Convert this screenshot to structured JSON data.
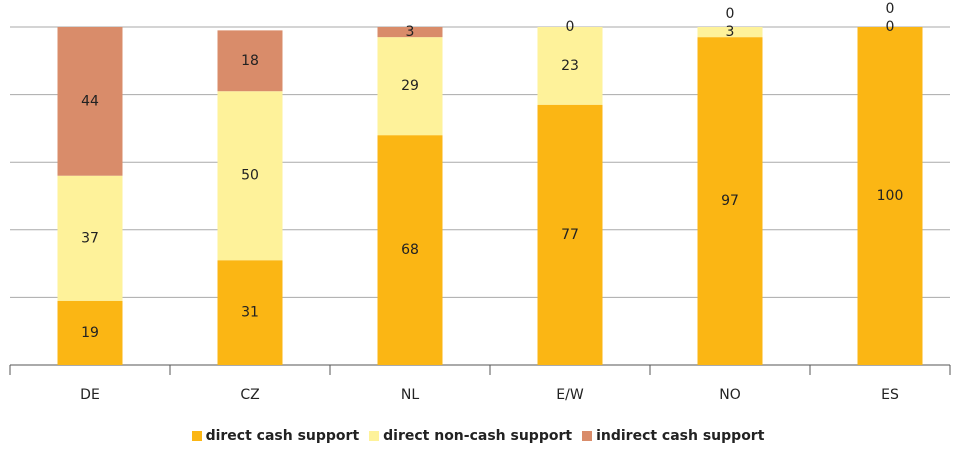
{
  "chart_data": {
    "type": "stacked_bar",
    "categories": [
      "DE",
      "CZ",
      "NL",
      "E/W",
      "NO",
      "ES"
    ],
    "series": [
      {
        "name": "direct cash support",
        "color": "#fbb614",
        "values": [
          19,
          31,
          68,
          77,
          97,
          100
        ]
      },
      {
        "name": "direct non-cash support",
        "color": "#fef29a",
        "values": [
          37,
          50,
          29,
          23,
          3,
          0
        ]
      },
      {
        "name": "indirect cash support",
        "color": "#d98c6a",
        "values": [
          44,
          18,
          3,
          0,
          0,
          0
        ]
      }
    ],
    "ylim": [
      0,
      100
    ],
    "yticks": [
      0,
      20,
      40,
      60,
      80,
      100
    ],
    "grid": true,
    "legend": "bottom"
  }
}
